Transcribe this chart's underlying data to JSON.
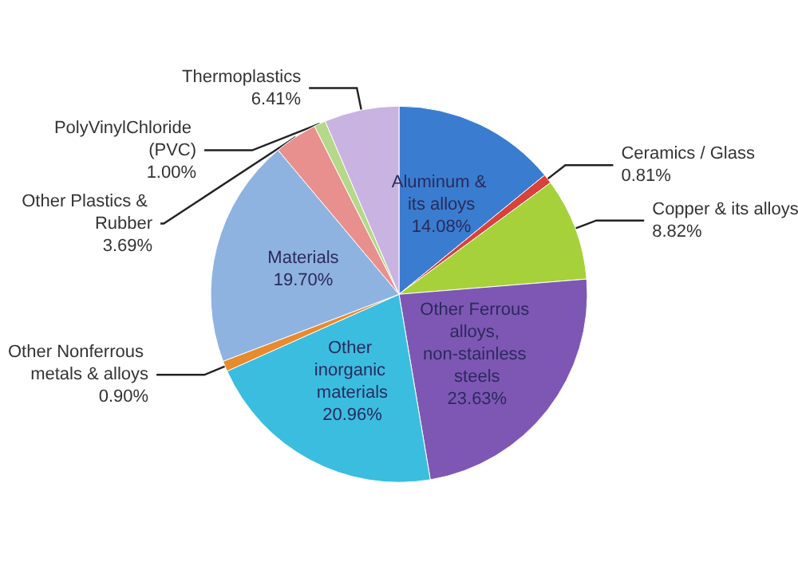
{
  "chart_data": {
    "type": "pie",
    "categories": [
      "Aluminum & its alloys",
      "Ceramics / Glass",
      "Copper & its alloys",
      "Other Ferrous alloys, non-stainless steels",
      "Other inorganic materials",
      "Other Nonferrous metals & alloys",
      "Materials",
      "Other Plastics & Rubber",
      "PolyVinylChloride (PVC)",
      "Thermoplastics"
    ],
    "values": [
      14.08,
      0.81,
      8.82,
      23.63,
      20.96,
      0.9,
      19.7,
      3.69,
      1.0,
      6.41
    ],
    "value_labels": [
      "14.08%",
      "0.81%",
      "8.82%",
      "23.63%",
      "20.96%",
      "0.90%",
      "19.70%",
      "3.69%",
      "1.00%",
      "6.41%"
    ],
    "colors": [
      "#3a7dd0",
      "#d9413b",
      "#a6d13a",
      "#7e57b5",
      "#3bbde0",
      "#e88a2e",
      "#8fb3e0",
      "#e8908e",
      "#b5d88a",
      "#c9b3e0"
    ],
    "legend": false
  }
}
